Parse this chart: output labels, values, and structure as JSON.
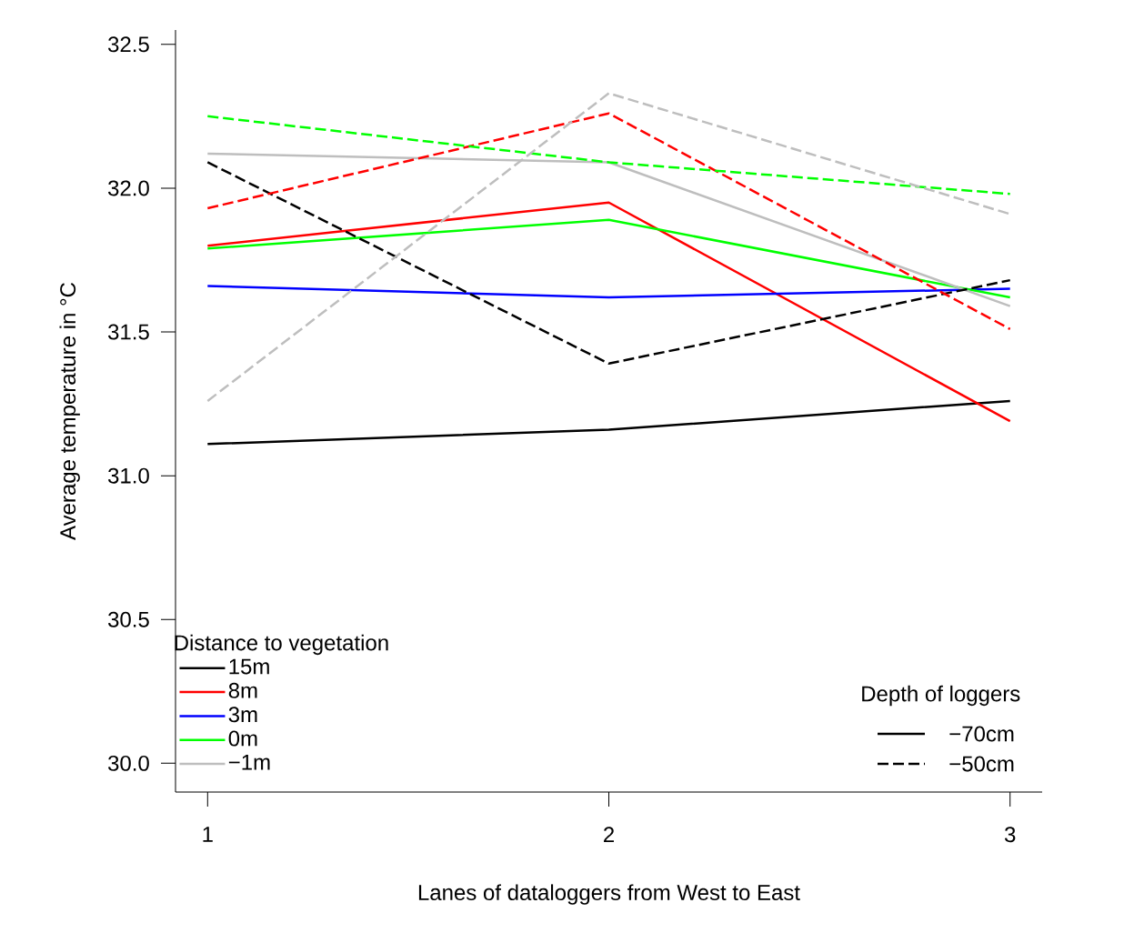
{
  "chart_data": {
    "type": "line",
    "xlabel": "Lanes of dataloggers from West to East",
    "ylabel": "Average temperature in °C",
    "legend_title": "Distance to vegetation",
    "legend": "bottom left",
    "x": [
      1,
      2,
      3
    ],
    "xlim": [
      0.92,
      3.08
    ],
    "xticks": [
      1,
      2,
      3
    ],
    "ylim": [
      29.9,
      32.55
    ],
    "yticks": [
      {
        "value": 30,
        "label": "30.0"
      },
      {
        "value": 30.5,
        "label": "30.5"
      },
      {
        "value": 31,
        "label": "31.0"
      },
      {
        "value": 31.5,
        "label": "31.5"
      },
      {
        "value": 32,
        "label": "32.0"
      },
      {
        "value": 32.5,
        "label": "32.5"
      }
    ],
    "annotations": [
      "Depth of loggers",
      "−70cm",
      "−50cm"
    ],
    "series": [
      {
        "name": "15m",
        "color": "#000000",
        "line_style": "solid",
        "values": [
          31.11,
          31.16,
          31.26
        ]
      },
      {
        "name": "8m",
        "color": "#ff0000",
        "line_style": "solid",
        "values": [
          31.8,
          31.95,
          31.19
        ]
      },
      {
        "name": "3m",
        "color": "#0000ff",
        "line_style": "solid",
        "values": [
          31.66,
          31.62,
          31.65
        ]
      },
      {
        "name": "0m",
        "color": "#00ff00",
        "line_style": "solid",
        "values": [
          31.79,
          31.89,
          31.62
        ]
      },
      {
        "name": "−1m",
        "color": "#bebebe",
        "line_style": "solid",
        "values": [
          32.12,
          32.09,
          31.59
        ]
      },
      {
        "color": "#000000",
        "line_style": "dashed",
        "values": [
          32.09,
          31.39,
          31.68
        ]
      },
      {
        "color": "#ff0000",
        "line_style": "dashed",
        "values": [
          31.93,
          32.26,
          31.51
        ]
      },
      {
        "color": "#00ff00",
        "line_style": "dashed",
        "values": [
          32.25,
          32.09,
          31.98
        ]
      },
      {
        "color": "#bebebe",
        "line_style": "dashed",
        "values": [
          31.26,
          32.33,
          31.91
        ]
      }
    ]
  }
}
